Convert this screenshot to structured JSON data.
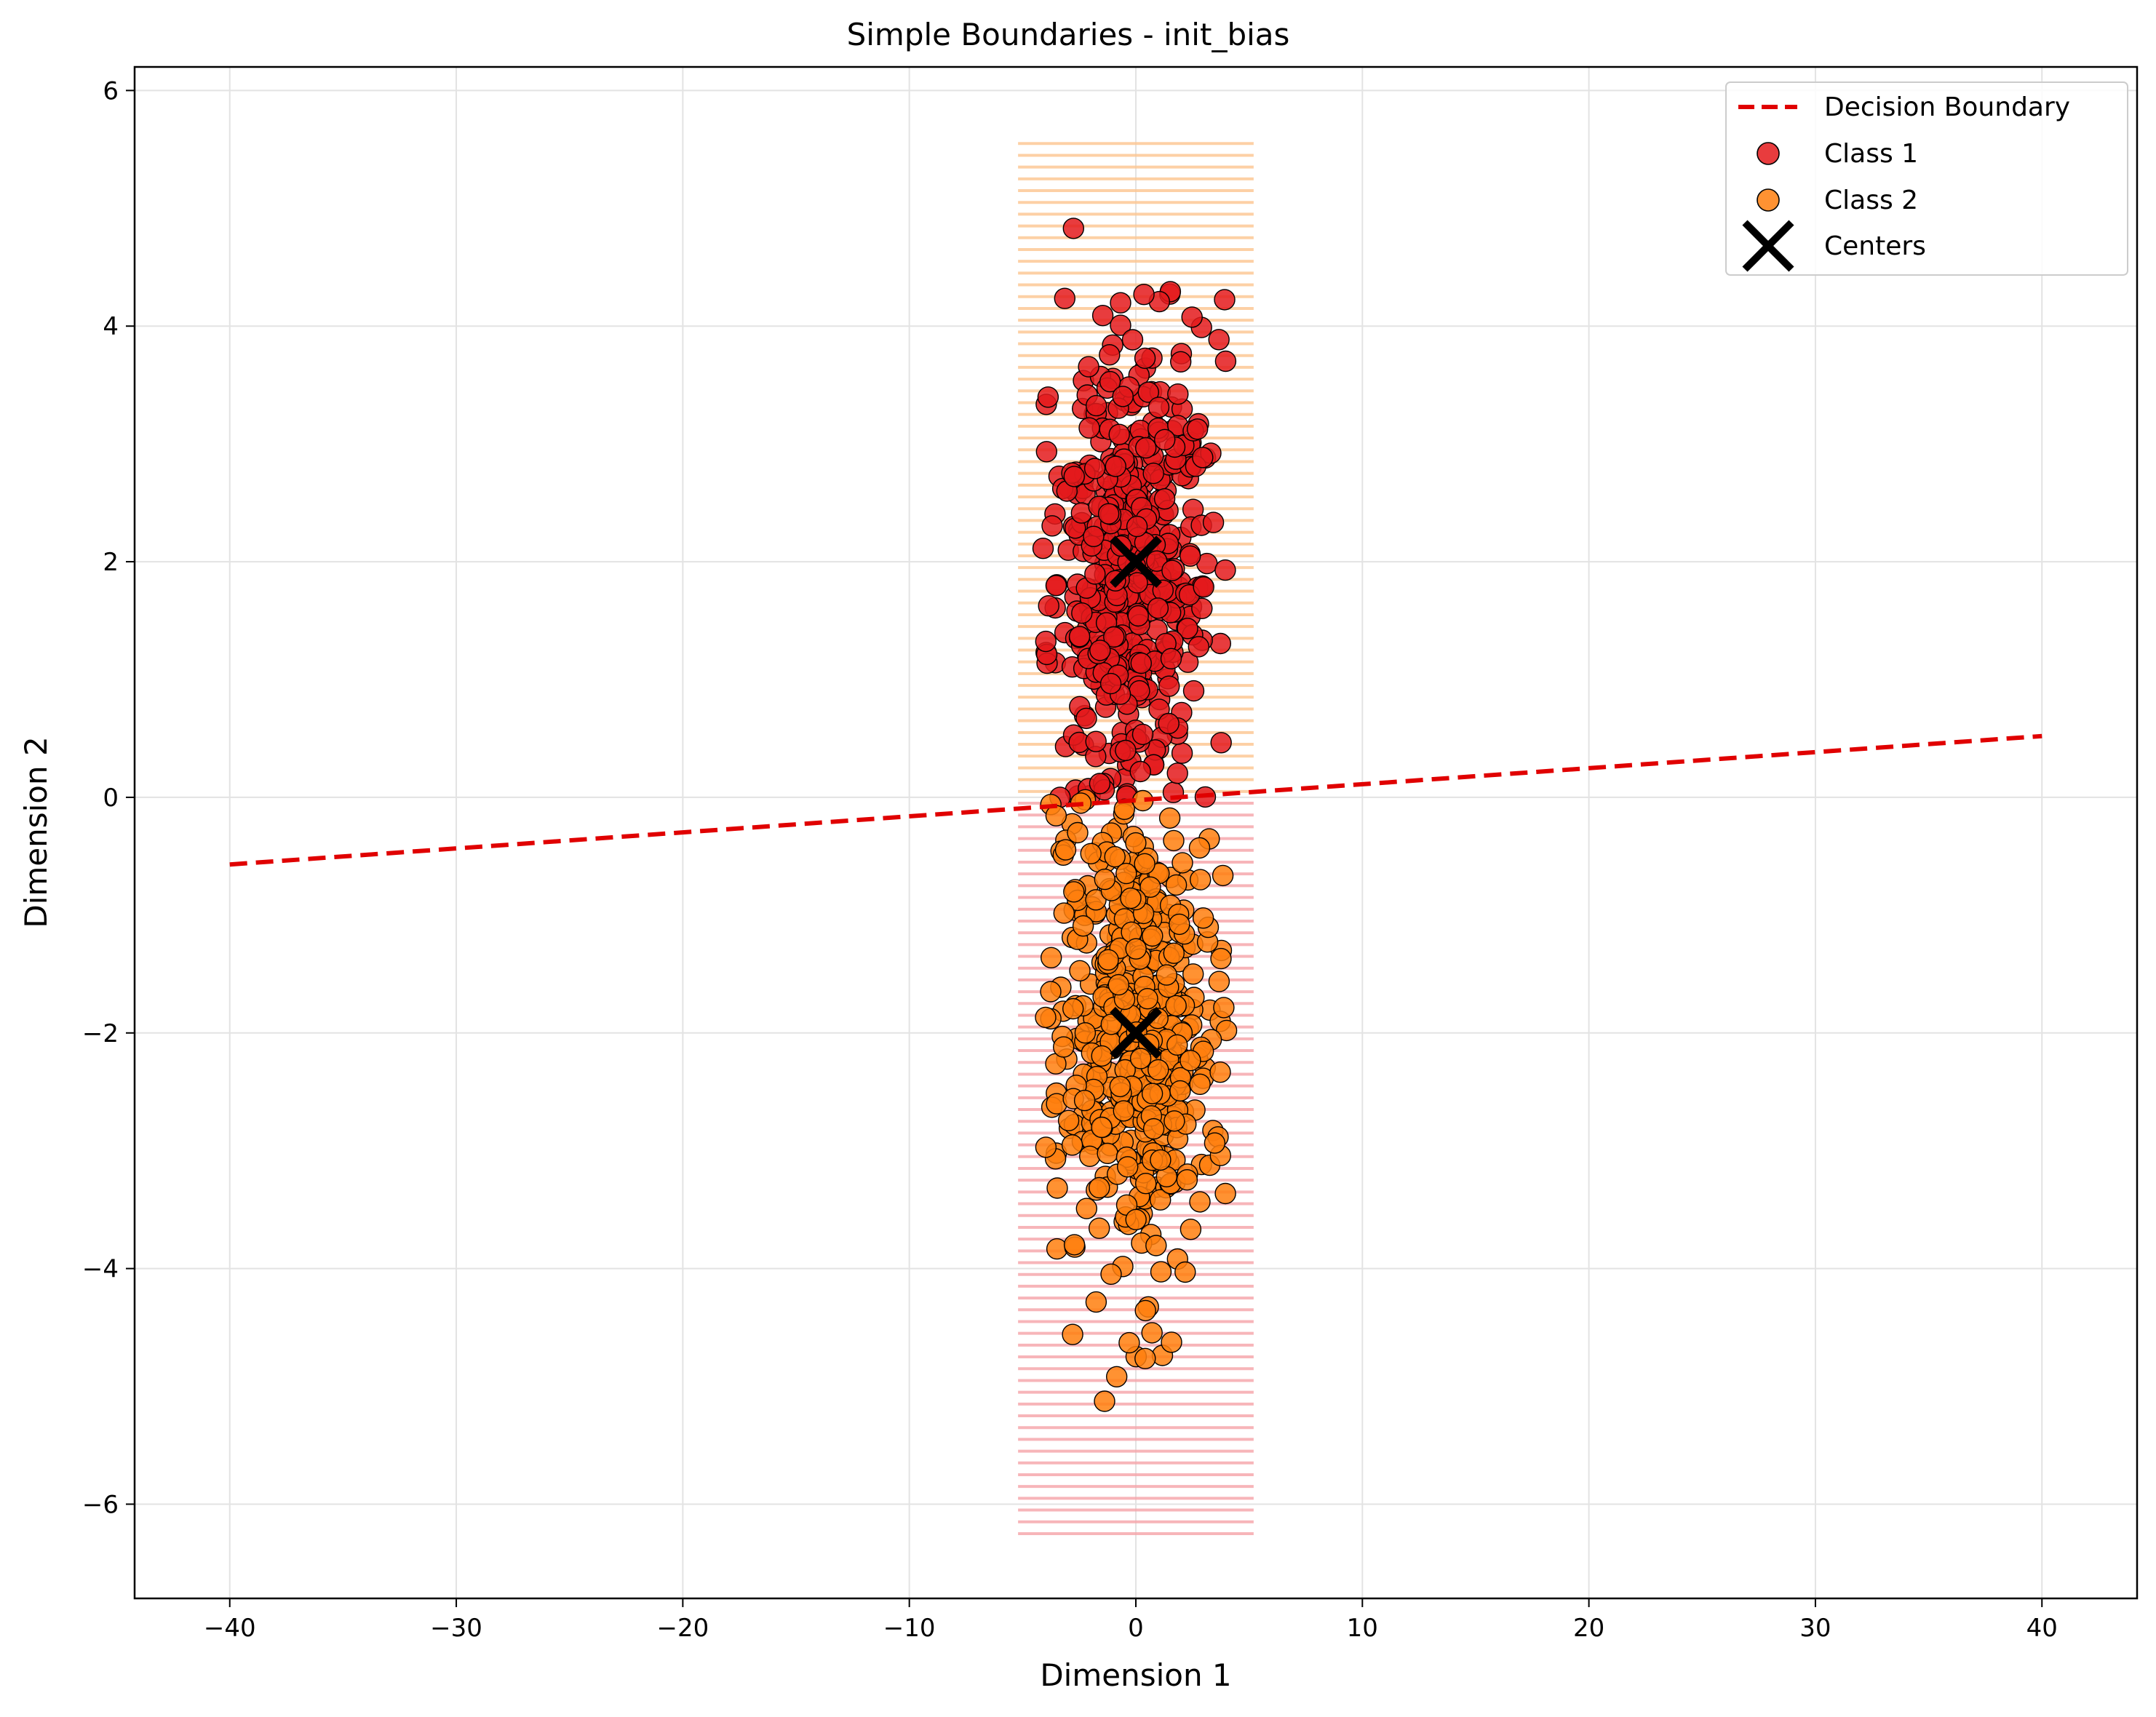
{
  "chart_data": {
    "type": "scatter",
    "title": "Simple Boundaries - init_bias",
    "xlabel": "Dimension 1",
    "ylabel": "Dimension 2",
    "xlim": [
      -44.2,
      44.2
    ],
    "ylim": [
      -6.8,
      6.2
    ],
    "xticks": [
      -40,
      -30,
      -20,
      -10,
      0,
      10,
      20,
      30,
      40
    ],
    "yticks": [
      -6,
      -4,
      -2,
      0,
      2,
      4,
      6
    ],
    "grid": true,
    "legend_position": "top-right",
    "colors": {
      "class1": "#e41a1c",
      "class2": "#ff7f0e",
      "boundary": "#e00000",
      "centers": "#000000",
      "region_class1": "#f5a3a8",
      "region_class2": "#fcc48e"
    },
    "decision_boundary": {
      "name": "Decision Boundary",
      "x": [
        -40,
        40
      ],
      "y": [
        -0.57,
        0.52
      ],
      "style": "dashed"
    },
    "decision_region": {
      "x_range": [
        -5.2,
        5.2
      ],
      "y_range": [
        -6.25,
        5.6
      ],
      "upper_class": "Class 2",
      "lower_class": "Class 1"
    },
    "series": [
      {
        "name": "Class 1",
        "center": [
          0,
          2
        ],
        "n_points": 500,
        "x_spread": 1.7,
        "y_spread": 0.95,
        "y_min": 0.0
      },
      {
        "name": "Class 2",
        "center": [
          0,
          -2
        ],
        "n_points": 500,
        "x_spread": 1.7,
        "y_spread": 1.0,
        "y_max": 0.0
      }
    ],
    "centers": {
      "name": "Centers",
      "points": [
        [
          0,
          2
        ],
        [
          0,
          -2
        ]
      ]
    }
  }
}
